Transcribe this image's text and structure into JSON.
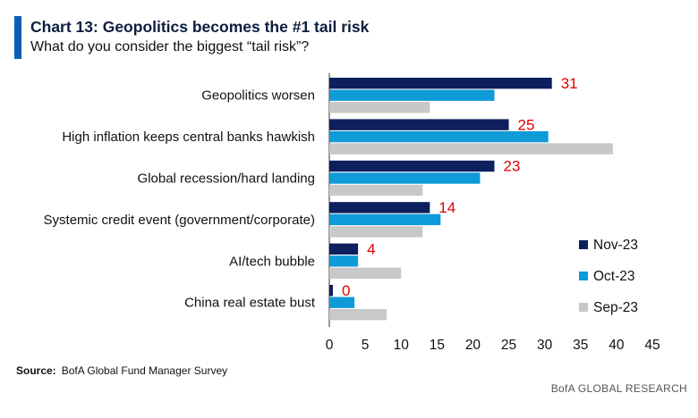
{
  "header": {
    "title": "Chart 13: Geopolitics becomes the #1 tail risk",
    "subtitle": "What do you consider the biggest “tail risk”?"
  },
  "footer": {
    "source_label": "Source:",
    "source_text": "BofA Global Fund Manager Survey",
    "brand": "BofA GLOBAL RESEARCH"
  },
  "chart_data": {
    "type": "bar",
    "orientation": "horizontal",
    "categories": [
      "Geopolitics worsen",
      "High inflation keeps central banks hawkish",
      "Global recession/hard landing",
      "Systemic credit event (government/corporate)",
      "AI/tech bubble",
      "China real estate bust"
    ],
    "series": [
      {
        "name": "Nov-23",
        "color": "#0d1f5c",
        "values": [
          31,
          25,
          23,
          14,
          4,
          0.5
        ]
      },
      {
        "name": "Oct-23",
        "color": "#0f9ad8",
        "values": [
          23,
          30.5,
          21,
          15.5,
          4,
          3.5
        ]
      },
      {
        "name": "Sep-23",
        "color": "#c8c8c8",
        "values": [
          14,
          39.5,
          13,
          13,
          10,
          8
        ]
      }
    ],
    "data_labels": [
      "31",
      "25",
      "23",
      "14",
      "4",
      "0"
    ],
    "data_label_color": "#e00000",
    "xlim": [
      0,
      45
    ],
    "xticks": [
      "0",
      "5",
      "10",
      "15",
      "20",
      "25",
      "30",
      "35",
      "40",
      "45"
    ],
    "grid": false,
    "legend_position": "right"
  }
}
